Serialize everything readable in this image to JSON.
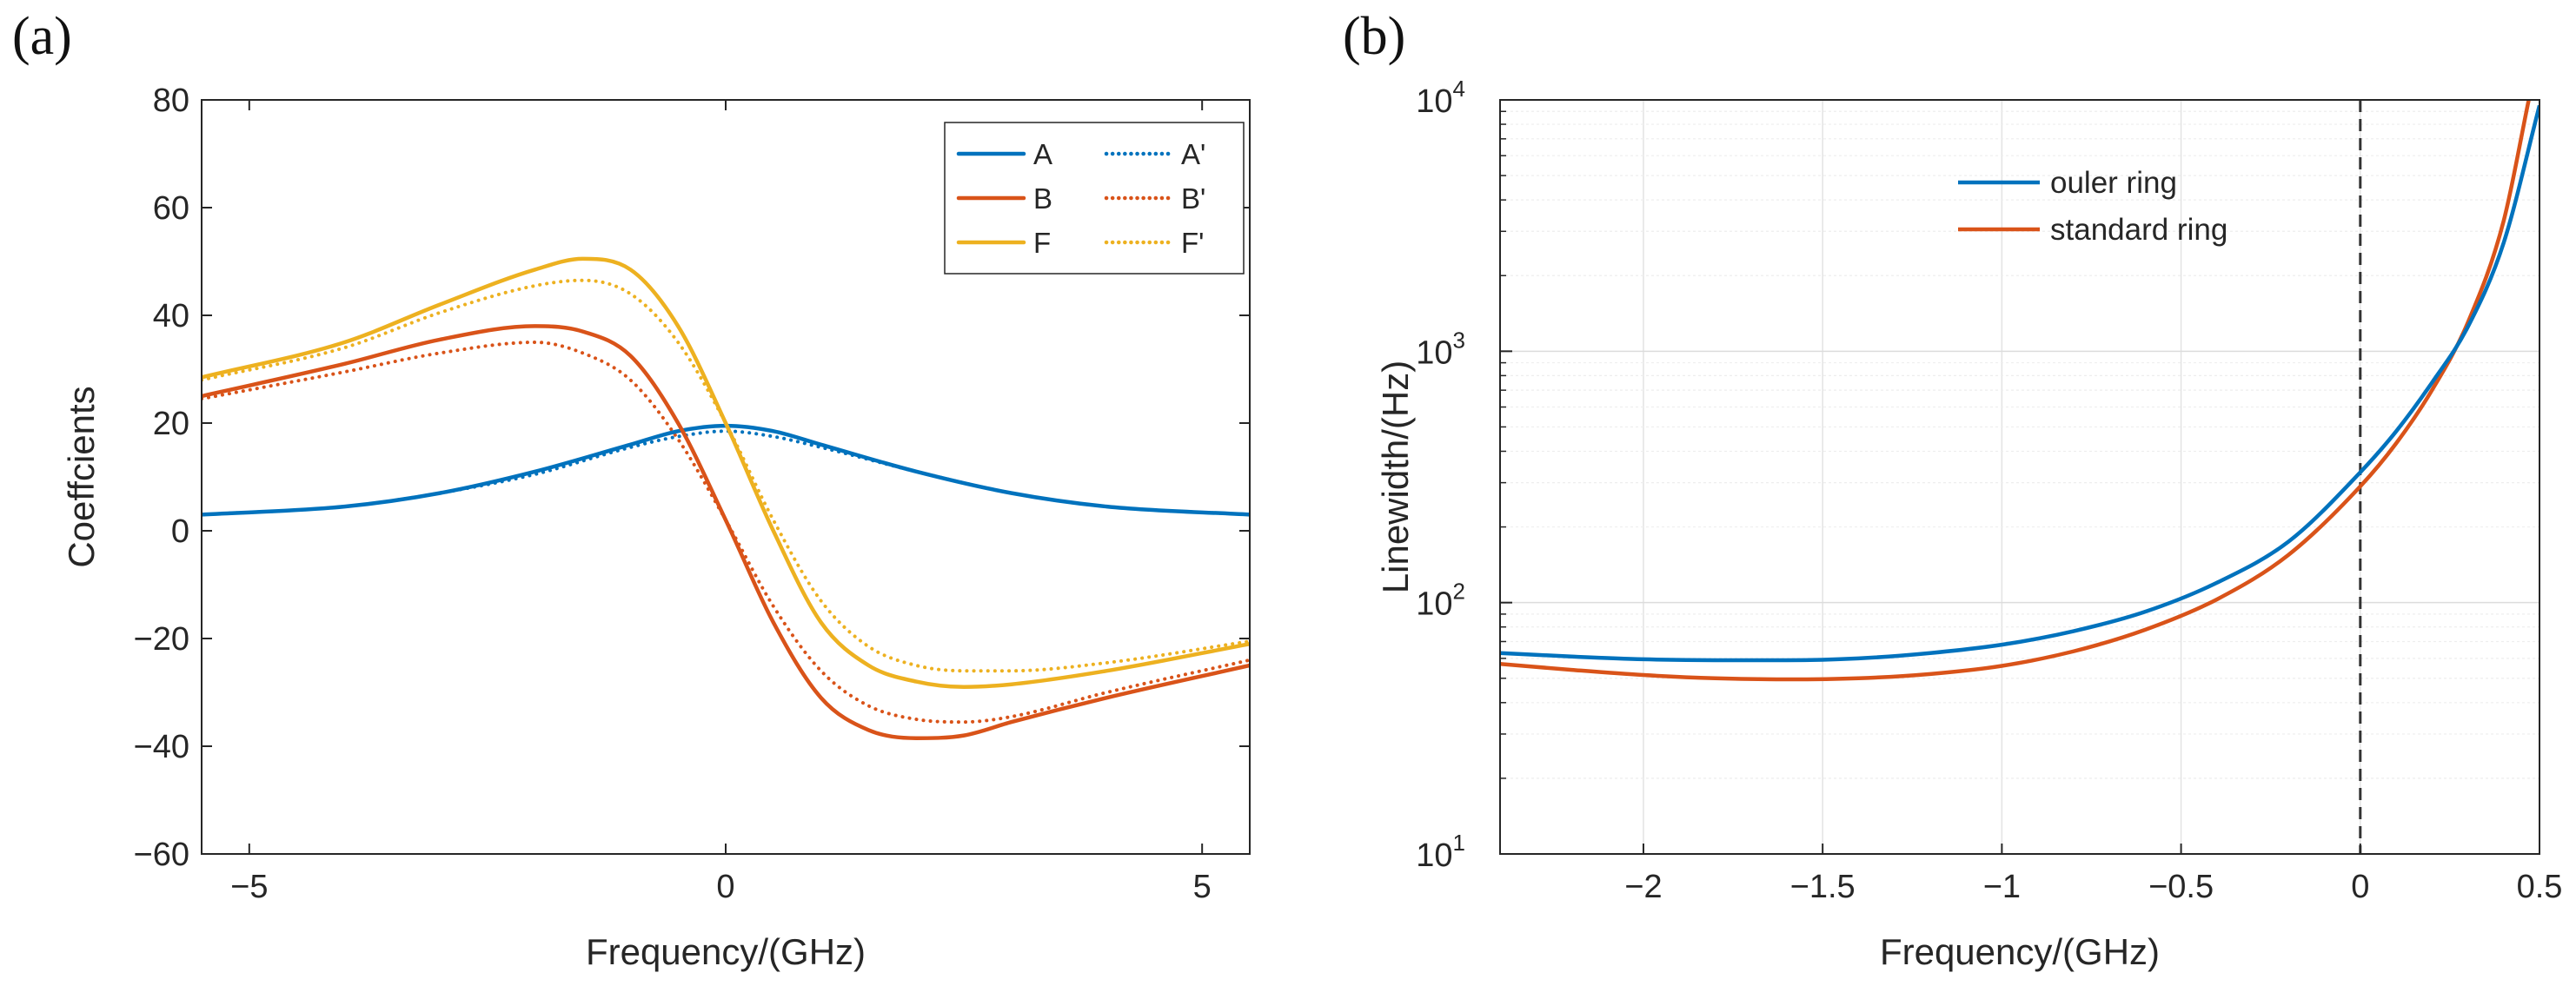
{
  "chart_data": [
    {
      "type": "line",
      "panel_label": "(a)",
      "xlabel": "Frequency/(GHz)",
      "ylabel": "Coeffcients",
      "xlim": [
        -5.5,
        5.5
      ],
      "ylim": [
        -60,
        80
      ],
      "x_ticks": [
        -5,
        0,
        5
      ],
      "x_tick_labels": [
        "−5",
        "0",
        "5"
      ],
      "y_ticks": [
        -60,
        -40,
        -20,
        0,
        20,
        40,
        60,
        80
      ],
      "y_tick_labels": [
        "−60",
        "−40",
        "−20",
        "0",
        "20",
        "40",
        "60",
        "80"
      ],
      "grid": false,
      "legend_position": "top-right",
      "series": [
        {
          "name": "A",
          "color": "#0072BD",
          "style": "solid",
          "x": [
            -5.5,
            -4,
            -3,
            -2,
            -1,
            -0.5,
            0,
            0.5,
            1,
            2,
            3,
            4,
            5.5
          ],
          "y": [
            3,
            4.5,
            7,
            11,
            16,
            18.5,
            19.5,
            18.5,
            16,
            11,
            7,
            4.5,
            3
          ]
        },
        {
          "name": "B",
          "color": "#D95319",
          "style": "solid",
          "x": [
            -5.5,
            -4,
            -3,
            -2,
            -1.5,
            -1,
            -0.5,
            0,
            0.5,
            1,
            1.5,
            2,
            2.5,
            3,
            4,
            5.5
          ],
          "y": [
            25,
            31,
            35.5,
            38,
            37,
            32.5,
            20,
            2,
            -17,
            -31,
            -37,
            -38.5,
            -38,
            -35.5,
            -31,
            -25
          ]
        },
        {
          "name": "F",
          "color": "#EDB120",
          "style": "solid",
          "x": [
            -5.5,
            -4,
            -3,
            -2,
            -1.5,
            -1,
            -0.5,
            0,
            0.5,
            1,
            1.5,
            2,
            2.5,
            3,
            4,
            5.5
          ],
          "y": [
            28.5,
            35,
            42,
            48.5,
            50.5,
            48.5,
            38,
            20,
            0,
            -17,
            -25,
            -28,
            -29,
            -28.5,
            -26,
            -21
          ]
        },
        {
          "name": "A'",
          "color": "#0072BD",
          "style": "dotted",
          "x": [
            -5.5,
            -4,
            -3,
            -2,
            -1,
            -0.5,
            0,
            0.5,
            1,
            2,
            3,
            4,
            5.5
          ],
          "y": [
            3,
            4.5,
            7,
            10.5,
            15.5,
            17.5,
            18.5,
            17.5,
            15.5,
            11,
            7,
            4.5,
            3
          ]
        },
        {
          "name": "B'",
          "color": "#D95319",
          "style": "dotted",
          "x": [
            -5.5,
            -4,
            -3,
            -2,
            -1.5,
            -1,
            -0.5,
            0,
            0.5,
            1,
            1.5,
            2,
            2.5,
            3,
            4,
            5.5
          ],
          "y": [
            24.5,
            29.5,
            33,
            35,
            33,
            28,
            17,
            2,
            -14,
            -26,
            -32.5,
            -35,
            -35.5,
            -34.5,
            -30,
            -24
          ]
        },
        {
          "name": "F'",
          "color": "#EDB120",
          "style": "dotted",
          "x": [
            -5.5,
            -4,
            -3,
            -2,
            -1.5,
            -1,
            -0.5,
            0,
            0.5,
            1,
            1.5,
            2,
            2.5,
            3,
            4,
            5.5
          ],
          "y": [
            28,
            34,
            40.5,
            45.5,
            46.5,
            44,
            35,
            20,
            2,
            -13,
            -21.5,
            -25,
            -26,
            -26,
            -24.5,
            -20.5
          ]
        }
      ]
    },
    {
      "type": "line",
      "panel_label": "(b)",
      "xlabel": "Frequency/(GHz)",
      "ylabel": "Linewidth/(Hz)",
      "yscale": "log",
      "xlim": [
        -2.4,
        0.5
      ],
      "ylim": [
        10,
        10000
      ],
      "x_ticks": [
        -2,
        -1.5,
        -1,
        -0.5,
        0,
        0.5
      ],
      "x_tick_labels": [
        "−2",
        "−1.5",
        "−1",
        "−0.5",
        "0",
        "0.5"
      ],
      "y_ticks": [
        10,
        100,
        1000,
        10000
      ],
      "y_tick_labels": [
        {
          "base": "10",
          "exp": "1"
        },
        {
          "base": "10",
          "exp": "2"
        },
        {
          "base": "10",
          "exp": "3"
        },
        {
          "base": "10",
          "exp": "4"
        }
      ],
      "grid": true,
      "vline": {
        "x": 0,
        "style": "dashed",
        "color": "#333333"
      },
      "legend_position": "top-left",
      "series": [
        {
          "name": "ouler ring",
          "color": "#0072BD",
          "x": [
            -2.4,
            -2.2,
            -2,
            -1.8,
            -1.6,
            -1.4,
            -1.2,
            -1,
            -0.8,
            -0.6,
            -0.4,
            -0.2,
            0,
            0.1,
            0.2,
            0.3,
            0.4,
            0.5
          ],
          "y": [
            63,
            61,
            59.5,
            59,
            59,
            60,
            63,
            68,
            77,
            92,
            120,
            175,
            330,
            480,
            750,
            1250,
            2700,
            9500
          ]
        },
        {
          "name": "standard ring",
          "color": "#D95319",
          "x": [
            -2.4,
            -2.2,
            -2,
            -1.8,
            -1.6,
            -1.4,
            -1.2,
            -1,
            -0.8,
            -0.6,
            -0.4,
            -0.2,
            0,
            0.1,
            0.2,
            0.3,
            0.4,
            0.47
          ],
          "y": [
            57,
            54,
            51.5,
            50,
            49.5,
            50,
            52,
            56,
            64,
            78,
            103,
            155,
            290,
            430,
            700,
            1300,
            3300,
            10000
          ]
        }
      ]
    }
  ]
}
